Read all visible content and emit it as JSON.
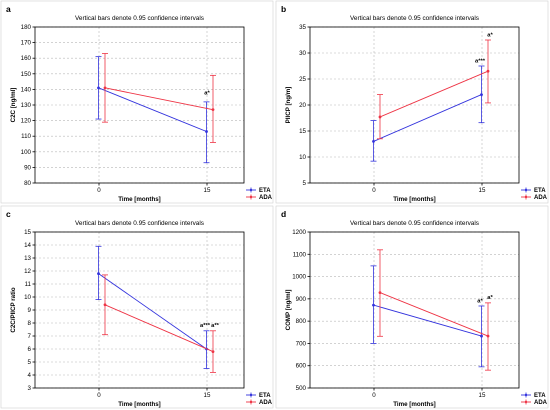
{
  "chart_data": [
    {
      "panel": "a",
      "type": "line",
      "title": "Vertical bars denote 0.95 confidence intervals",
      "xlabel": "Time [months]",
      "ylabel": "C2C [ng/ml]",
      "categories": [
        "0",
        "15"
      ],
      "ylim": [
        80,
        180
      ],
      "yticks": [
        80,
        90,
        100,
        110,
        120,
        130,
        140,
        150,
        160,
        170,
        180
      ],
      "grid": true,
      "legend": "bottom-right",
      "series": [
        {
          "name": "ETA",
          "color": "#3333dd",
          "values": [
            141,
            113
          ],
          "lower": [
            121,
            93
          ],
          "upper": [
            161,
            132
          ]
        },
        {
          "name": "ADA",
          "color": "#ee3344",
          "values": [
            141,
            127
          ],
          "lower": [
            119,
            106
          ],
          "upper": [
            163,
            149
          ]
        }
      ],
      "annotations": [
        {
          "text": "a*",
          "category": "15",
          "value": 136
        }
      ]
    },
    {
      "panel": "b",
      "type": "line",
      "title": "Vertical bars denote 0.95 confidence intervals",
      "xlabel": "Time [months]",
      "ylabel": "PIICP [ng/m]",
      "categories": [
        "0",
        "15"
      ],
      "ylim": [
        5,
        35
      ],
      "yticks": [
        5,
        10,
        15,
        20,
        25,
        30,
        35
      ],
      "grid": true,
      "legend": "bottom-right",
      "series": [
        {
          "name": "ETA",
          "color": "#3333dd",
          "values": [
            13,
            22
          ],
          "lower": [
            9.2,
            16.6
          ],
          "upper": [
            17,
            27.5
          ]
        },
        {
          "name": "ADA",
          "color": "#ee3344",
          "values": [
            17.7,
            26.5
          ],
          "lower": [
            13.5,
            20.4
          ],
          "upper": [
            22,
            32.5
          ]
        }
      ],
      "annotations": [
        {
          "text": "a***",
          "category": "15",
          "value": 28
        },
        {
          "text": "a*",
          "category": "15",
          "value": 33
        }
      ]
    },
    {
      "panel": "c",
      "type": "line",
      "title": "Vertical bars denote 0.95 confidence intervals",
      "xlabel": "Time [months]",
      "ylabel": "C2C/PIICP ratio",
      "categories": [
        "0",
        "15"
      ],
      "ylim": [
        3,
        15
      ],
      "yticks": [
        3,
        4,
        5,
        6,
        7,
        8,
        9,
        10,
        11,
        12,
        13,
        14,
        15
      ],
      "grid": true,
      "legend": "bottom-right",
      "series": [
        {
          "name": "ETA",
          "color": "#3333dd",
          "values": [
            11.8,
            6
          ],
          "lower": [
            9.8,
            4.5
          ],
          "upper": [
            13.9,
            7.4
          ]
        },
        {
          "name": "ADA",
          "color": "#ee3344",
          "values": [
            9.4,
            5.8
          ],
          "lower": [
            7.1,
            4.2
          ],
          "upper": [
            11.7,
            7.4
          ]
        }
      ],
      "annotations": [
        {
          "text": "a***",
          "category": "15",
          "value": 7.6
        },
        {
          "text": "a**",
          "category": "15",
          "value": 7.6
        }
      ]
    },
    {
      "panel": "d",
      "type": "line",
      "title": "Vertical bars denote 0.95 confidence intervals",
      "xlabel": "Time [months]",
      "ylabel": "COMP [ng/ml]",
      "categories": [
        "0",
        "15"
      ],
      "ylim": [
        500,
        1200
      ],
      "yticks": [
        500,
        600,
        700,
        800,
        900,
        1000,
        1100,
        1200
      ],
      "grid": true,
      "legend": "bottom-right",
      "series": [
        {
          "name": "ETA",
          "color": "#3333dd",
          "values": [
            872,
            733
          ],
          "lower": [
            700,
            595
          ],
          "upper": [
            1048,
            868
          ]
        },
        {
          "name": "ADA",
          "color": "#ee3344",
          "values": [
            928,
            733
          ],
          "lower": [
            732,
            580
          ],
          "upper": [
            1120,
            882
          ]
        }
      ],
      "annotations": [
        {
          "text": "a*",
          "category": "15",
          "value": 880
        },
        {
          "text": "a*",
          "category": "15",
          "value": 895
        }
      ]
    }
  ]
}
